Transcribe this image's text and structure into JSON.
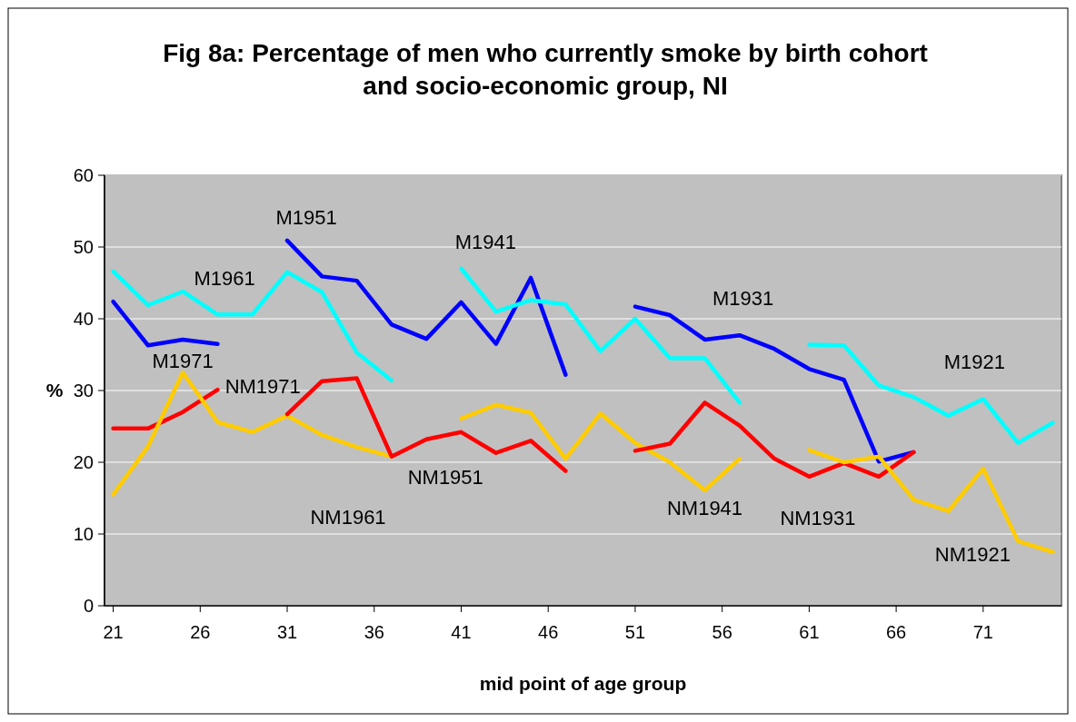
{
  "chart_data": {
    "type": "line",
    "title": "Fig 8a: Percentage of men who currently smoke by birth cohort and socio-economic group, NI",
    "xlabel": "mid point of age group",
    "ylabel": "%",
    "xlim": [
      20.5,
      75.5
    ],
    "xticks": [
      21,
      26,
      31,
      36,
      41,
      46,
      51,
      56,
      61,
      66,
      71
    ],
    "ylim": [
      0,
      60
    ],
    "yticks": [
      0,
      10,
      20,
      30,
      40,
      50,
      60
    ],
    "grid": "y",
    "line_style": "solid",
    "marker": "none",
    "series": [
      {
        "name": "M1971",
        "color": "#0000ff",
        "x": [
          21,
          23,
          25,
          27
        ],
        "values": [
          42.4,
          36.3,
          37.1,
          36.5
        ]
      },
      {
        "name": "NM1971",
        "color": "#ff0000",
        "x": [
          21,
          23,
          25,
          27
        ],
        "values": [
          24.7,
          24.7,
          27.0,
          30.1
        ]
      },
      {
        "name": "M1961",
        "color": "#00ffff",
        "x": [
          21,
          23,
          25,
          27,
          29,
          31,
          33,
          35,
          37
        ],
        "values": [
          46.6,
          41.9,
          43.8,
          40.6,
          40.6,
          46.5,
          43.7,
          35.3,
          31.4
        ]
      },
      {
        "name": "NM1961",
        "color": "#ffcc00",
        "x": [
          21,
          23,
          25,
          27,
          29,
          31,
          33,
          35,
          37
        ],
        "values": [
          15.5,
          22.2,
          32.5,
          25.6,
          24.2,
          26.5,
          23.8,
          22.1,
          20.8
        ]
      },
      {
        "name": "M1951",
        "color": "#0000ff",
        "x": [
          31,
          33,
          35,
          37,
          39,
          41,
          43,
          45,
          47
        ],
        "values": [
          50.9,
          45.9,
          45.3,
          39.2,
          37.2,
          42.3,
          36.5,
          45.7,
          32.2
        ]
      },
      {
        "name": "NM1951",
        "color": "#ff0000",
        "x": [
          31,
          33,
          35,
          37,
          39,
          41,
          43,
          45,
          47
        ],
        "values": [
          26.7,
          31.3,
          31.7,
          20.8,
          23.2,
          24.2,
          21.3,
          23.0,
          18.8
        ]
      },
      {
        "name": "M1941",
        "color": "#00ffff",
        "x": [
          41,
          43,
          45,
          47,
          49,
          51,
          53,
          55,
          57
        ],
        "values": [
          47.0,
          41.0,
          42.6,
          42.0,
          35.5,
          40.0,
          34.5,
          34.5,
          28.3
        ]
      },
      {
        "name": "NM1941",
        "color": "#ffcc00",
        "x": [
          41,
          43,
          45,
          47,
          49,
          51,
          53,
          55,
          57
        ],
        "values": [
          26.1,
          28.0,
          26.9,
          20.5,
          26.8,
          22.7,
          20.0,
          16.1,
          20.5
        ]
      },
      {
        "name": "M1931",
        "color": "#0000ff",
        "x": [
          51,
          53,
          55,
          57,
          59,
          61,
          63,
          65,
          67
        ],
        "values": [
          41.7,
          40.5,
          37.1,
          37.7,
          35.8,
          33.0,
          31.5,
          20.1,
          21.4
        ]
      },
      {
        "name": "NM1931",
        "color": "#ff0000",
        "x": [
          51,
          53,
          55,
          57,
          59,
          61,
          63,
          65,
          67
        ],
        "values": [
          21.6,
          22.6,
          28.3,
          25.1,
          20.5,
          18.0,
          19.9,
          18.0,
          21.4
        ]
      },
      {
        "name": "M1921",
        "color": "#00ffff",
        "x": [
          61,
          63,
          65,
          67,
          69,
          71,
          73,
          75
        ],
        "values": [
          36.4,
          36.3,
          30.7,
          29.1,
          26.5,
          28.8,
          22.7,
          25.5
        ]
      },
      {
        "name": "NM1921",
        "color": "#ffcc00",
        "x": [
          61,
          63,
          65,
          67,
          69,
          71,
          73,
          75
        ],
        "values": [
          21.7,
          20.0,
          20.8,
          14.8,
          13.2,
          19.1,
          9.0,
          7.5
        ]
      }
    ]
  }
}
